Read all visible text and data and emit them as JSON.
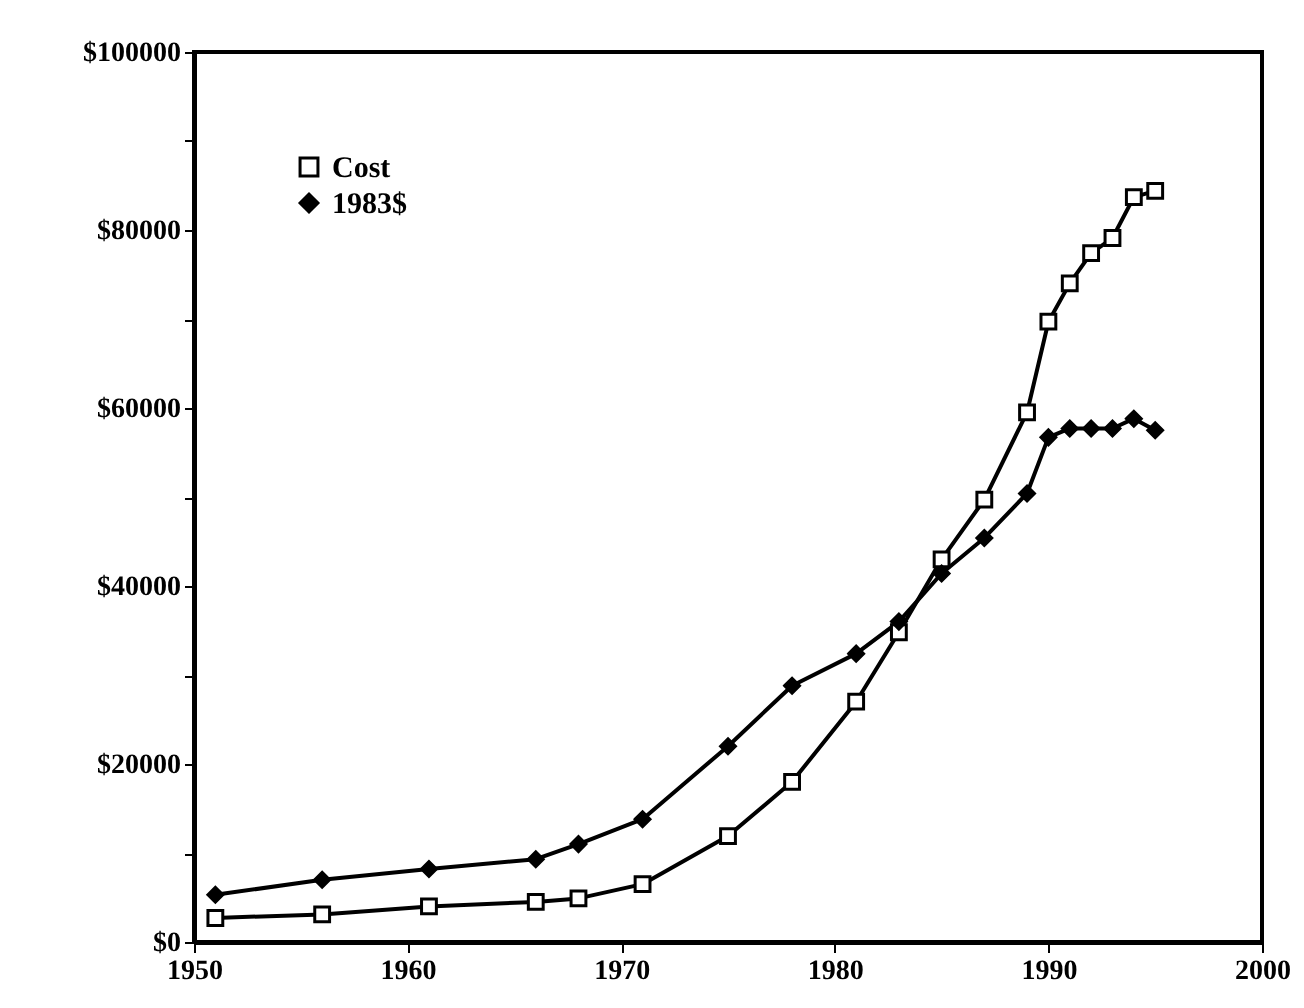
{
  "chart_data": {
    "type": "line",
    "x": [
      1951,
      1956,
      1961,
      1966,
      1968,
      1971,
      1975,
      1978,
      1981,
      1983,
      1985,
      1987,
      1989,
      1990,
      1991,
      1992,
      1993,
      1994,
      1995
    ],
    "series": [
      {
        "name": "Cost",
        "color": "#000000",
        "marker": "square",
        "values": [
          2700,
          3100,
          4000,
          4500,
          4900,
          6500,
          11900,
          18000,
          27000,
          34800,
          43000,
          49700,
          59500,
          69700,
          74000,
          77400,
          79100,
          83700,
          84400
        ]
      },
      {
        "name": "1983$",
        "color": "#000000",
        "marker": "diamond",
        "values": [
          5300,
          7000,
          8200,
          9300,
          11000,
          13800,
          22000,
          28800,
          32400,
          36000,
          41400,
          45400,
          50400,
          56700,
          57700,
          57700,
          57700,
          58800,
          57500
        ]
      }
    ],
    "xlim": [
      1950,
      2000
    ],
    "xticks": [
      1950,
      1960,
      1970,
      1980,
      1990,
      2000
    ],
    "ylim": [
      0,
      100000
    ],
    "yticks": [
      {
        "value": 0,
        "label": "$0"
      },
      {
        "value": 10000,
        "label": null
      },
      {
        "value": 20000,
        "label": "$20000"
      },
      {
        "value": 30000,
        "label": null
      },
      {
        "value": 40000,
        "label": "$40000"
      },
      {
        "value": 50000,
        "label": null
      },
      {
        "value": 60000,
        "label": "$60000"
      },
      {
        "value": 70000,
        "label": null
      },
      {
        "value": 80000,
        "label": "$80000"
      },
      {
        "value": 90000,
        "label": null
      },
      {
        "value": 100000,
        "label": "$100000"
      }
    ],
    "legend": "top left",
    "grid": false,
    "line_style": "solid"
  }
}
